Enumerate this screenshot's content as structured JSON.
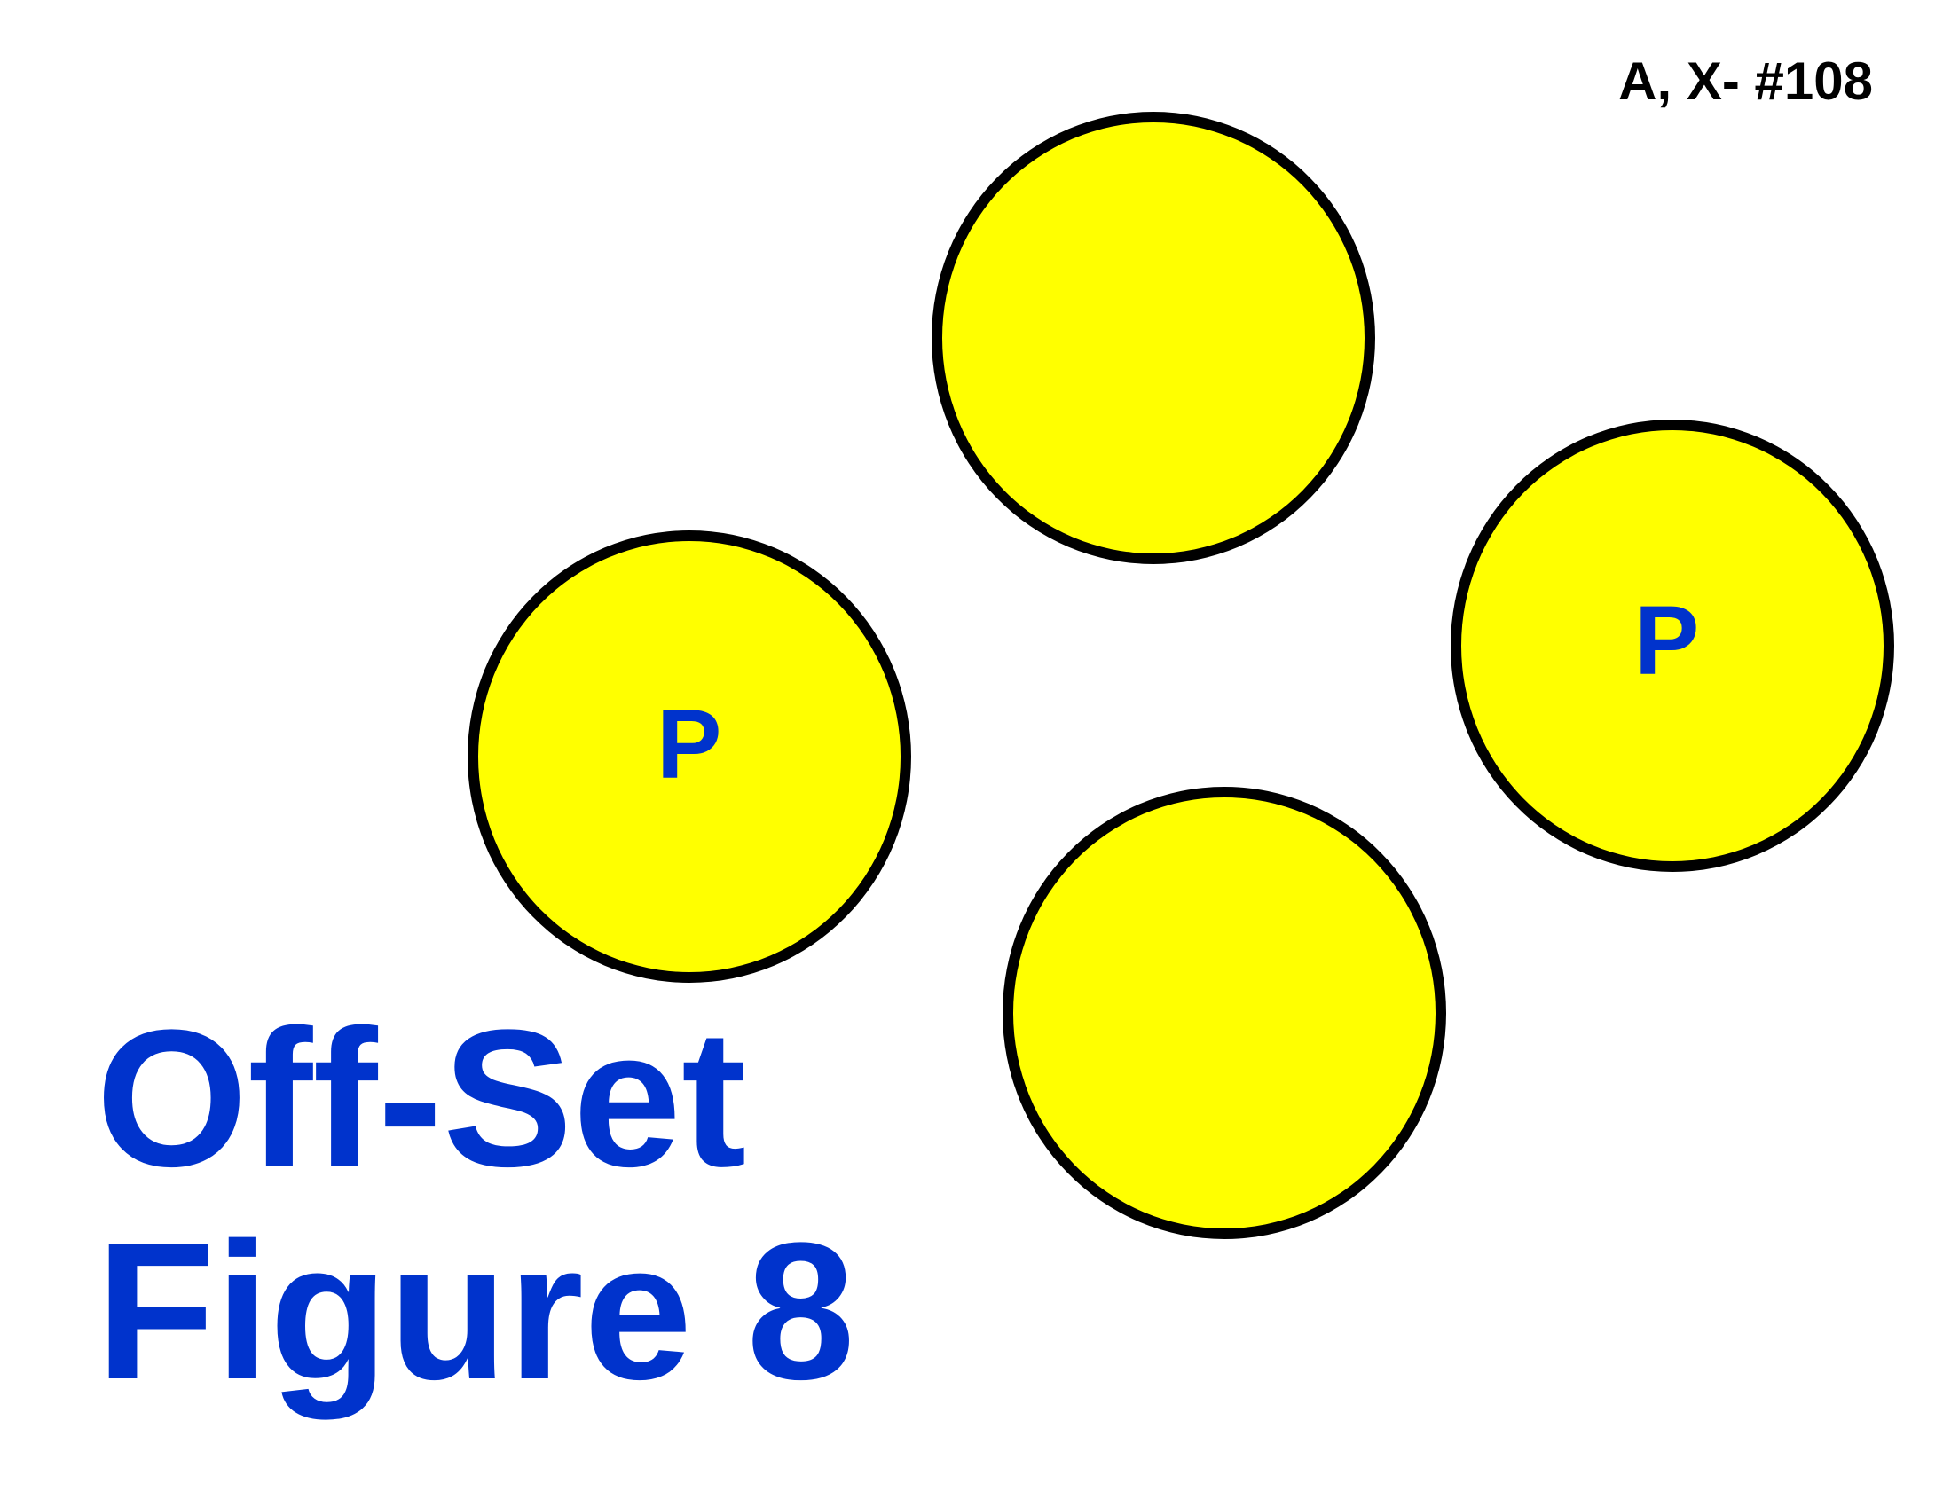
{
  "header": {
    "code": "A, X- #108"
  },
  "cones": [
    {
      "id": "top",
      "label": ""
    },
    {
      "id": "left",
      "label": "P"
    },
    {
      "id": "right",
      "label": "P"
    },
    {
      "id": "bottom",
      "label": ""
    }
  ],
  "title": {
    "line1": "Off-Set",
    "line2": "Figure 8"
  },
  "colors": {
    "cone_fill": "#ffff00",
    "cone_outline": "#000000",
    "text_blue": "#0033cc",
    "background": "#ffffff"
  }
}
